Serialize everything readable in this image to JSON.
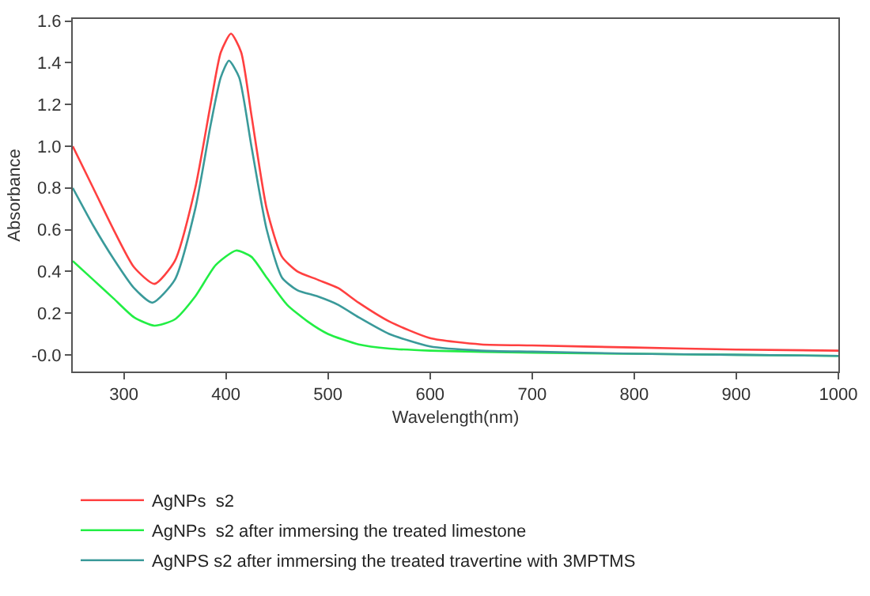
{
  "chart_data": {
    "type": "line",
    "xlabel": "Wavelength(nm)",
    "ylabel": "Absorbance",
    "xlim": [
      250,
      1000
    ],
    "xticks": [
      300,
      400,
      500,
      600,
      700,
      800,
      900,
      1000
    ],
    "ylim": [
      -0.08,
      1.61
    ],
    "yticks": [
      {
        "value": 0,
        "label": "-0.0"
      },
      0.2,
      0.4,
      0.6,
      0.8,
      {
        "value": 1,
        "label": "1.0"
      },
      1.2,
      1.4,
      1.6
    ],
    "legend": "bottom",
    "marker": "none",
    "line_style": "solid",
    "series": [
      {
        "name": "AgNPs  s2",
        "color": "#ff4040",
        "x": [
          250,
          270,
          290,
          310,
          330,
          350,
          370,
          385,
          395,
          405,
          415,
          425,
          440,
          455,
          470,
          490,
          510,
          530,
          560,
          600,
          650,
          700,
          800,
          900,
          1000
        ],
        "values": [
          1.0,
          0.8,
          0.6,
          0.42,
          0.34,
          0.45,
          0.8,
          1.2,
          1.45,
          1.54,
          1.45,
          1.15,
          0.7,
          0.47,
          0.4,
          0.36,
          0.32,
          0.25,
          0.16,
          0.08,
          0.05,
          0.045,
          0.035,
          0.025,
          0.02
        ]
      },
      {
        "name": "AgNPs  s2 after immersing the treated limestone",
        "color": "#22ee44",
        "x": [
          250,
          270,
          290,
          310,
          330,
          350,
          370,
          390,
          410,
          425,
          440,
          460,
          480,
          500,
          530,
          560,
          600,
          700,
          800,
          900,
          1000
        ],
        "values": [
          0.45,
          0.36,
          0.27,
          0.18,
          0.14,
          0.17,
          0.28,
          0.43,
          0.5,
          0.47,
          0.37,
          0.24,
          0.16,
          0.1,
          0.05,
          0.03,
          0.02,
          0.01,
          0.005,
          0.0,
          -0.005
        ]
      },
      {
        "name": "AgNPS s2 after immersing the treated travertine with 3MPTMS",
        "color": "#3a9a9a",
        "x": [
          250,
          270,
          290,
          310,
          328,
          350,
          370,
          385,
          395,
          403,
          413,
          425,
          440,
          455,
          470,
          490,
          510,
          530,
          560,
          600,
          650,
          700,
          800,
          900,
          1000
        ],
        "values": [
          0.8,
          0.62,
          0.46,
          0.32,
          0.25,
          0.36,
          0.7,
          1.1,
          1.33,
          1.41,
          1.33,
          1.0,
          0.6,
          0.37,
          0.31,
          0.28,
          0.24,
          0.18,
          0.1,
          0.04,
          0.02,
          0.015,
          0.005,
          0.0,
          -0.005
        ]
      }
    ]
  }
}
